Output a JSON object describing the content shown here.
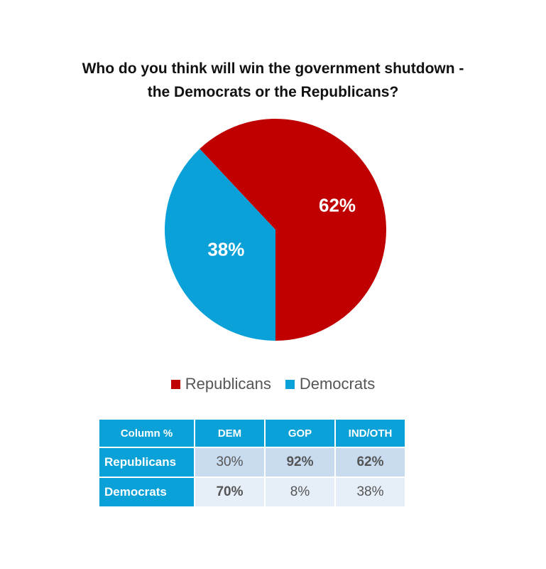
{
  "colors": {
    "republicans": "#c00000",
    "democrats": "#0aa1d8",
    "table_header": "#0aa1d8"
  },
  "chart_data": {
    "type": "pie",
    "title": "Who do you think will win the government shutdown - the Democrats or the Republicans?",
    "title_lines": [
      "Who do you think will win the government shutdown -",
      "the Democrats or the Republicans?"
    ],
    "slices": [
      {
        "label": "Republicans",
        "value": 62,
        "display": "62%",
        "color": "#c00000"
      },
      {
        "label": "Democrats",
        "value": 38,
        "display": "38%",
        "color": "#0aa1d8"
      }
    ],
    "legend_position": "bottom"
  },
  "crosstab": {
    "corner": "Column %",
    "columns": [
      "DEM",
      "GOP",
      "IND/OTH"
    ],
    "rows": [
      {
        "label": "Republicans",
        "cells": [
          "30%",
          "92%",
          "62%"
        ],
        "bold": [
          false,
          true,
          true
        ]
      },
      {
        "label": "Democrats",
        "cells": [
          "70%",
          "8%",
          "38%"
        ],
        "bold": [
          true,
          false,
          false
        ]
      }
    ]
  }
}
